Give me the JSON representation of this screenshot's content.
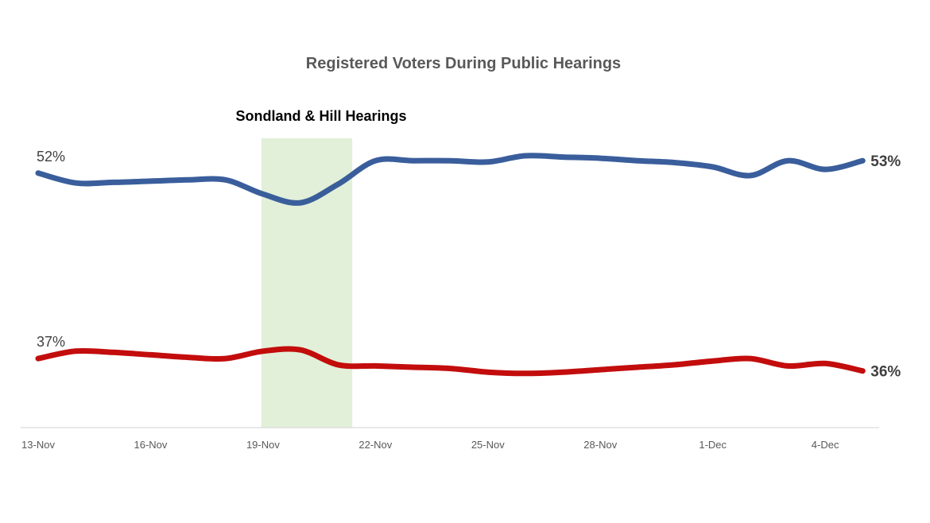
{
  "chart_data": {
    "type": "line",
    "title": "Registered Voters During Public Hearings",
    "xlabel": "",
    "ylabel": "",
    "x": [
      "13-Nov",
      "14-Nov",
      "15-Nov",
      "16-Nov",
      "17-Nov",
      "18-Nov",
      "19-Nov",
      "20-Nov",
      "21-Nov",
      "22-Nov",
      "23-Nov",
      "24-Nov",
      "25-Nov",
      "26-Nov",
      "27-Nov",
      "28-Nov",
      "29-Nov",
      "30-Nov",
      "1-Dec",
      "2-Dec",
      "3-Dec",
      "4-Dec",
      "5-Dec"
    ],
    "x_tick_labels": [
      "13-Nov",
      "16-Nov",
      "19-Nov",
      "22-Nov",
      "25-Nov",
      "28-Nov",
      "1-Dec",
      "4-Dec"
    ],
    "ylim": [
      30,
      57
    ],
    "grid": false,
    "series": [
      {
        "color": "#2F5597",
        "values": [
          52.0,
          51.2,
          51.25,
          51.35,
          51.45,
          51.45,
          50.3,
          49.6,
          51.1,
          53.0,
          53.0,
          53.0,
          52.9,
          53.4,
          53.3,
          53.2,
          53.0,
          52.85,
          52.5,
          51.8,
          53.0,
          52.3,
          53.0
        ],
        "start_label": "52%",
        "end_label": "53%"
      },
      {
        "color": "#C00000",
        "values": [
          37.0,
          37.6,
          37.5,
          37.3,
          37.1,
          37.0,
          37.6,
          37.7,
          36.5,
          36.4,
          36.3,
          36.2,
          35.9,
          35.8,
          35.9,
          36.1,
          36.3,
          36.5,
          36.8,
          37.0,
          36.4,
          36.6,
          36.0
        ],
        "start_label": "37%",
        "end_label": "36%"
      }
    ],
    "annotations": [
      {
        "label": "Sondland & Hill Hearings",
        "x_start": "19-Nov",
        "x_end": "21-Nov",
        "highlight_color": "#E2EFD9"
      }
    ]
  }
}
